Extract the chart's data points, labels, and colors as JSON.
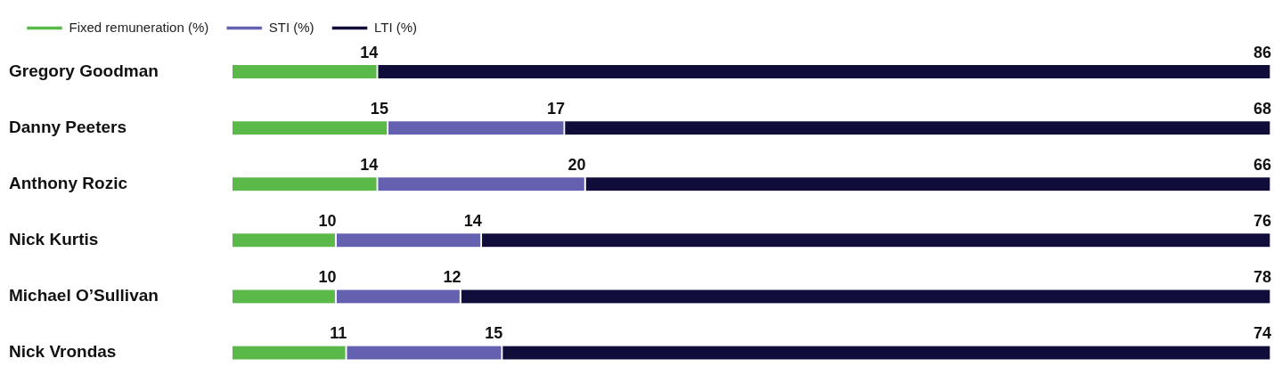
{
  "chart_data": {
    "type": "bar",
    "orientation": "horizontal",
    "stacked": true,
    "data_labels": true,
    "legend": "top left",
    "tick_labels": "y",
    "categories": [
      "Gregory Goodman",
      "Danny Peeters",
      "Anthony Rozic",
      "Nick Kurtis",
      "Michael O’Sullivan",
      "Nick Vrondas"
    ],
    "series": [
      {
        "name": "Fixed remuneration (%)",
        "color": "#5bb94a",
        "values": [
          14,
          15,
          14,
          10,
          10,
          11
        ]
      },
      {
        "name": "STI (%)",
        "color": "#6461b0",
        "values": [
          null,
          17,
          20,
          14,
          12,
          15
        ]
      },
      {
        "name": "LTI (%)",
        "color": "#110d3a",
        "values": [
          86,
          68,
          66,
          76,
          78,
          74
        ]
      }
    ]
  }
}
